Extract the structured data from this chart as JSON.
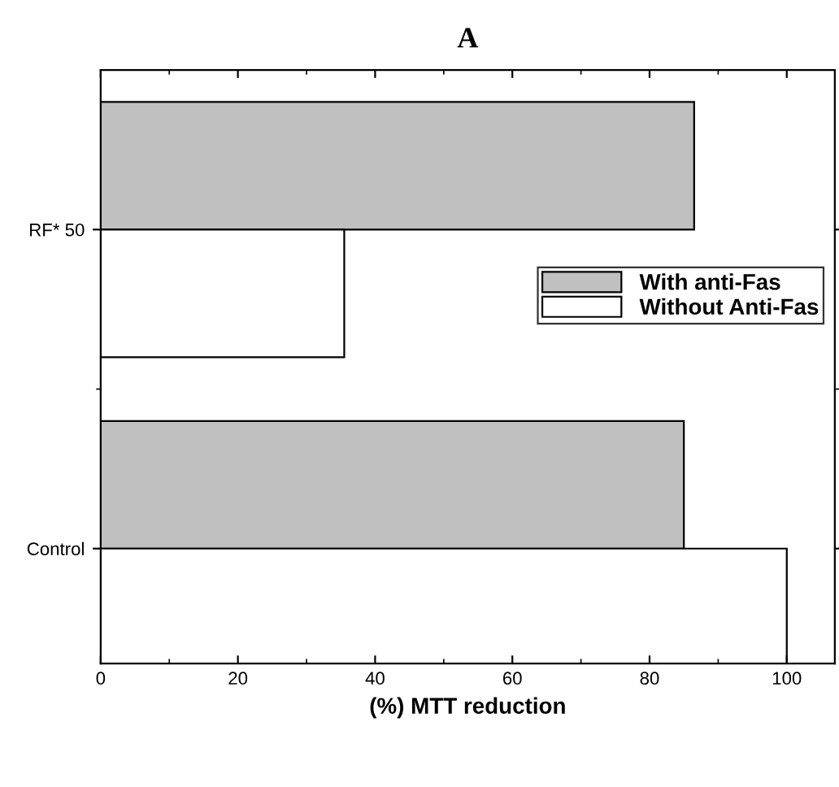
{
  "chart_data": {
    "type": "bar",
    "orientation": "horizontal",
    "title": "A",
    "xlabel": "(%) MTT reduction",
    "categories": [
      "RF* 50",
      "Control"
    ],
    "series": [
      {
        "name": "With anti-Fas",
        "color": "#c0c0c0",
        "values": [
          86.5,
          85
        ]
      },
      {
        "name": "Without Anti-Fas",
        "color": "#ffffff",
        "values": [
          35.5,
          100
        ]
      }
    ],
    "xlim": [
      0,
      107
    ],
    "xticks": [
      0,
      20,
      40,
      60,
      80,
      100
    ],
    "grid": false,
    "legend": "right"
  }
}
